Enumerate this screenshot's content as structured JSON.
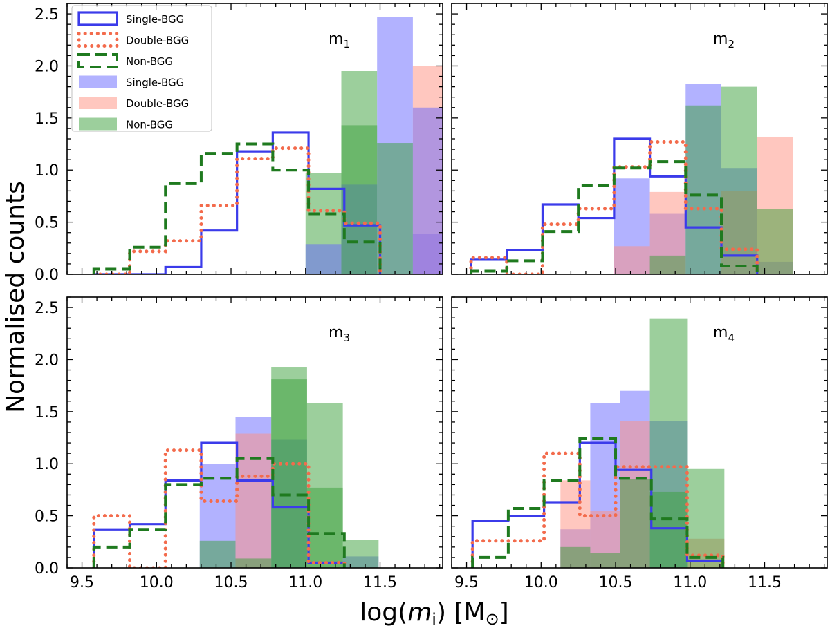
{
  "chart_data": {
    "type": "histogram",
    "ylabel": "Normalised counts",
    "xlabel_prefix": "log(",
    "xlabel_var": "m",
    "xlabel_sub": "i",
    "xlabel_suffix": ") [M",
    "xlabel_sun": "⊙",
    "xlabel_close": "]",
    "xlim": [
      9.4,
      11.92
    ],
    "ylim": [
      0,
      2.6
    ],
    "xticks": [
      9.5,
      10.0,
      10.5,
      11.0,
      11.5
    ],
    "xtick_labels": [
      "9.5",
      "10.0",
      "10.5",
      "11.0",
      "11.5"
    ],
    "yticks": [
      0.0,
      0.5,
      1.0,
      1.5,
      2.0,
      2.5
    ],
    "ytick_labels": [
      "0.0",
      "0.5",
      "1.0",
      "1.5",
      "2.0",
      "2.5"
    ],
    "colors": {
      "single": "#3b3bea",
      "double": "#f36b4c",
      "non": "#1f7a1f",
      "single_fill": "#6666ff",
      "double_fill": "#ff9080",
      "non_fill": "#3aa03a"
    },
    "legend": {
      "position": "top-left",
      "entries": [
        {
          "label": "Single-BGG",
          "kind": "step",
          "style": "single"
        },
        {
          "label": "Double-BGG",
          "kind": "step",
          "style": "double"
        },
        {
          "label": "Non-BGG",
          "kind": "step",
          "style": "non"
        },
        {
          "label": "Single-BGG",
          "kind": "fill",
          "style": "single"
        },
        {
          "label": "Double-BGG",
          "kind": "fill",
          "style": "double"
        },
        {
          "label": "Non-BGG",
          "kind": "fill",
          "style": "non"
        }
      ]
    },
    "panels": [
      {
        "label": "m",
        "sub": "1",
        "steps": [
          {
            "name": "Single-BGG",
            "style": "single",
            "edges": [
              9.58,
              9.82,
              10.06,
              10.3,
              10.54,
              10.78,
              11.02,
              11.26,
              11.5
            ],
            "values": [
              0.0,
              0.0,
              0.07,
              0.42,
              1.18,
              1.36,
              0.82,
              0.47
            ]
          },
          {
            "name": "Double-BGG",
            "style": "double",
            "edges": [
              9.58,
              9.82,
              10.06,
              10.3,
              10.54,
              10.78,
              11.02,
              11.26,
              11.5
            ],
            "values": [
              0.0,
              0.22,
              0.32,
              0.66,
              1.11,
              1.21,
              0.61,
              0.49
            ]
          },
          {
            "name": "Non-BGG",
            "style": "non",
            "edges": [
              9.58,
              9.82,
              10.06,
              10.3,
              10.54,
              10.78,
              11.02,
              11.26,
              11.5
            ],
            "values": [
              0.05,
              0.26,
              0.87,
              1.16,
              1.25,
              1.0,
              0.58,
              0.31
            ]
          }
        ],
        "fills": [
          {
            "name": "Non-BGG",
            "style": "non",
            "edges": [
              11.0,
              11.24,
              11.48,
              11.72,
              11.96
            ],
            "values": [
              0.97,
              1.95,
              0.0,
              0.0
            ]
          },
          {
            "name": "Single-BGG",
            "style": "single",
            "edges": [
              11.0,
              11.24,
              11.48,
              11.72,
              11.96
            ],
            "values": [
              0.29,
              0.86,
              2.47,
              0.39
            ]
          },
          {
            "name": "Double-BGG",
            "style": "double",
            "edges": [
              11.0,
              11.24,
              11.48,
              11.72,
              11.96
            ],
            "values": [
              0.0,
              0.0,
              0.0,
              2.0
            ]
          },
          {
            "name": "Non-BGG",
            "style": "non",
            "edges": [
              11.0,
              11.24,
              11.48,
              11.72,
              11.96
            ],
            "values": [
              0.0,
              1.43,
              1.26,
              0.0
            ]
          },
          {
            "name": "Single-BGG",
            "style": "single",
            "edges": [
              11.0,
              11.24,
              11.48,
              11.72,
              11.96
            ],
            "values": [
              0.0,
              0.0,
              0.0,
              1.6
            ]
          }
        ]
      },
      {
        "label": "m",
        "sub": "2",
        "steps": [
          {
            "name": "Single-BGG",
            "style": "single",
            "edges": [
              9.53,
              9.77,
              10.01,
              10.25,
              10.49,
              10.73,
              10.97,
              11.21,
              11.45
            ],
            "values": [
              0.14,
              0.23,
              0.67,
              0.54,
              1.3,
              0.94,
              0.45,
              0.18
            ]
          },
          {
            "name": "Double-BGG",
            "style": "double",
            "edges": [
              9.53,
              9.77,
              10.01,
              10.25,
              10.49,
              10.73,
              10.97,
              11.21,
              11.45
            ],
            "values": [
              0.16,
              0.0,
              0.48,
              0.63,
              1.03,
              1.27,
              0.63,
              0.24
            ]
          },
          {
            "name": "Non-BGG",
            "style": "non",
            "edges": [
              9.53,
              9.77,
              10.01,
              10.25,
              10.49,
              10.73,
              10.97,
              11.21,
              11.45
            ],
            "values": [
              0.03,
              0.13,
              0.41,
              0.85,
              1.02,
              1.08,
              0.76,
              0.08
            ]
          }
        ],
        "fills": [
          {
            "name": "Single-BGG",
            "style": "single",
            "edges": [
              10.49,
              10.73,
              10.97,
              11.21,
              11.45,
              11.69
            ],
            "values": [
              0.92,
              0.58,
              1.83,
              1.02,
              0.12
            ]
          },
          {
            "name": "Double-BGG",
            "style": "double",
            "edges": [
              10.49,
              10.73,
              10.97,
              11.21,
              11.45,
              11.69
            ],
            "values": [
              0.27,
              0.79,
              0.0,
              0.8,
              1.32
            ]
          },
          {
            "name": "Non-BGG",
            "style": "non",
            "edges": [
              10.49,
              10.73,
              10.97,
              11.21,
              11.45,
              11.69
            ],
            "values": [
              0.0,
              0.18,
              1.62,
              1.8,
              0.63
            ]
          }
        ]
      },
      {
        "label": "m",
        "sub": "3",
        "steps": [
          {
            "name": "Single-BGG",
            "style": "single",
            "edges": [
              9.58,
              9.82,
              10.06,
              10.3,
              10.54,
              10.78,
              11.02,
              11.26
            ],
            "values": [
              0.37,
              0.42,
              0.84,
              1.2,
              0.84,
              0.58,
              0.05
            ]
          },
          {
            "name": "Double-BGG",
            "style": "double",
            "edges": [
              9.58,
              9.82,
              10.06,
              10.3,
              10.54,
              10.78,
              11.02,
              11.26
            ],
            "values": [
              0.5,
              0.0,
              1.13,
              0.64,
              0.88,
              1.0,
              0.05
            ]
          },
          {
            "name": "Non-BGG",
            "style": "non",
            "edges": [
              9.58,
              9.82,
              10.06,
              10.3,
              10.54,
              10.78,
              11.02,
              11.26
            ],
            "values": [
              0.2,
              0.37,
              0.8,
              0.86,
              1.05,
              0.7,
              0.33
            ]
          }
        ],
        "fills": [
          {
            "name": "Single-BGG",
            "style": "single",
            "edges": [
              10.29,
              10.53,
              10.77,
              11.01,
              11.25,
              11.49
            ],
            "values": [
              1.0,
              1.45,
              1.23,
              0.0,
              0.11
            ]
          },
          {
            "name": "Double-BGG",
            "style": "double",
            "edges": [
              10.29,
              10.53,
              10.77,
              11.01,
              11.25,
              11.49
            ],
            "values": [
              0.0,
              1.29,
              0.0,
              0.0,
              0.0
            ]
          },
          {
            "name": "Non-BGG",
            "style": "non",
            "edges": [
              10.29,
              10.53,
              10.77,
              11.01,
              11.25,
              11.49
            ],
            "values": [
              0.26,
              0.09,
              1.93,
              1.58,
              0.27
            ]
          },
          {
            "name": "Non-BGG",
            "style": "non",
            "edges": [
              10.29,
              10.53,
              10.77,
              11.01,
              11.25,
              11.49
            ],
            "values": [
              0.0,
              0.0,
              1.81,
              0.77,
              0.0
            ]
          }
        ]
      },
      {
        "label": "m",
        "sub": "4",
        "steps": [
          {
            "name": "Single-BGG",
            "style": "single",
            "edges": [
              9.54,
              9.78,
              10.02,
              10.26,
              10.5,
              10.74,
              10.98,
              11.22
            ],
            "values": [
              0.45,
              0.5,
              0.63,
              1.2,
              0.94,
              0.38,
              0.07
            ]
          },
          {
            "name": "Double-BGG",
            "style": "double",
            "edges": [
              9.54,
              9.78,
              10.02,
              10.26,
              10.5,
              10.74,
              10.98,
              11.22
            ],
            "values": [
              0.26,
              0.26,
              1.1,
              0.5,
              0.97,
              0.97,
              0.12
            ]
          },
          {
            "name": "Non-BGG",
            "style": "non",
            "edges": [
              9.54,
              9.78,
              10.02,
              10.26,
              10.5,
              10.74,
              10.98,
              11.22
            ],
            "values": [
              0.1,
              0.57,
              0.84,
              1.24,
              0.86,
              0.47,
              0.1
            ]
          }
        ],
        "fills": [
          {
            "name": "Single-BGG",
            "style": "single",
            "edges": [
              10.13,
              10.33,
              10.53,
              10.73,
              10.98,
              11.23
            ],
            "values": [
              0.37,
              1.58,
              1.7,
              1.41,
              0.0
            ]
          },
          {
            "name": "Double-BGG",
            "style": "double",
            "edges": [
              10.13,
              10.33,
              10.53,
              10.73,
              10.98,
              11.23
            ],
            "values": [
              0.84,
              0.55,
              1.41,
              0.0,
              0.28
            ]
          },
          {
            "name": "Non-BGG",
            "style": "non",
            "edges": [
              10.13,
              10.33,
              10.53,
              10.73,
              10.98,
              11.23
            ],
            "values": [
              0.2,
              0.14,
              0.85,
              2.39,
              0.95
            ]
          },
          {
            "name": "Non-BGG",
            "style": "non",
            "edges": [
              10.13,
              10.33,
              10.53,
              10.73,
              10.98,
              11.23
            ],
            "values": [
              0.0,
              0.0,
              0.0,
              0.73,
              0.0
            ]
          }
        ]
      }
    ]
  }
}
